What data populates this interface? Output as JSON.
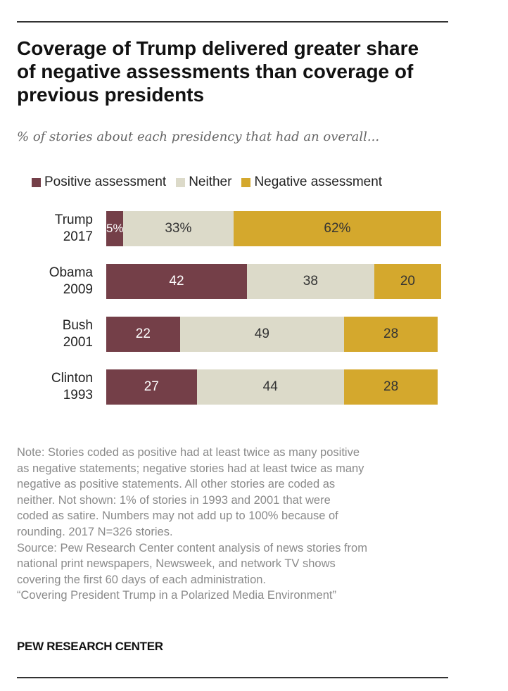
{
  "chart_data": {
    "type": "bar",
    "stacked": true,
    "orientation": "horizontal",
    "title": "Coverage of Trump delivered greater share of negative assessments than coverage of previous presidents",
    "subtitle": "% of stories about each presidency that had an overall...",
    "legend": [
      "Positive assessment",
      "Neither",
      "Negative assessment"
    ],
    "legend_placement": "top",
    "colors": {
      "positive": "#743f48",
      "neither": "#dcdac9",
      "negative": "#d4a82d"
    },
    "categories": [
      {
        "name": "Trump",
        "year": "2017"
      },
      {
        "name": "Obama",
        "year": "2009"
      },
      {
        "name": "Bush",
        "year": "2001"
      },
      {
        "name": "Clinton",
        "year": "1993"
      }
    ],
    "series": [
      {
        "name": "Positive assessment",
        "values": [
          5,
          42,
          22,
          27
        ],
        "labels": [
          "5%",
          "42",
          "22",
          "27"
        ]
      },
      {
        "name": "Neither",
        "values": [
          33,
          38,
          49,
          44
        ],
        "labels": [
          "33%",
          "38",
          "49",
          "44"
        ]
      },
      {
        "name": "Negative assessment",
        "values": [
          62,
          20,
          28,
          28
        ],
        "labels": [
          "62%",
          "20",
          "28",
          "28"
        ]
      }
    ],
    "xlim": [
      0,
      100
    ]
  },
  "notes": [
    "Note: Stories coded as positive had at least twice as many positive",
    "as negative statements; negative stories had at least twice as many",
    "negative as positive statements. All other stories are coded as",
    "neither. Not shown: 1% of stories in 1993 and 2001 that were",
    "coded as satire. Numbers may not add up to 100% because of",
    "rounding. 2017 N=326 stories.",
    "Source: Pew Research Center content analysis of news stories from",
    "national print newspapers, Newsweek, and network TV shows",
    "covering the first 60 days of each administration.",
    "“Covering President Trump in a Polarized Media Environment”"
  ],
  "brand": "PEW RESEARCH CENTER"
}
